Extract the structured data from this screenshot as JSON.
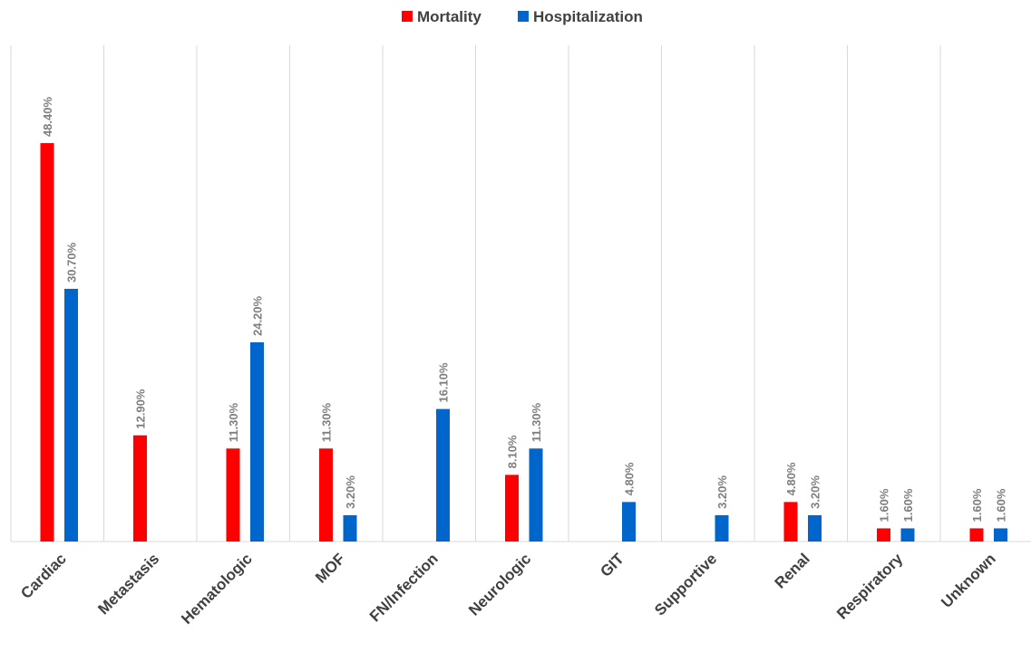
{
  "chart_data": {
    "type": "bar",
    "title": "",
    "xlabel": "",
    "ylabel": "",
    "ylim": [
      0,
      55
    ],
    "grid": "vertical category separators",
    "legend_position": "top-center",
    "categories": [
      "Cardiac",
      "Metastasis",
      "Hematologic",
      "MOF",
      "FN/Infection",
      "Neurologic",
      "GIT",
      "Supportive",
      "Renal",
      "Respiratory",
      "Unknown"
    ],
    "series": [
      {
        "name": "Mortality",
        "color": "#ff0000",
        "values": [
          48.4,
          12.9,
          11.3,
          11.3,
          null,
          8.1,
          null,
          null,
          4.8,
          1.6,
          1.6
        ],
        "labels": [
          "48.40%",
          "12.90%",
          "11.30%",
          "11.30%",
          "",
          "8.10%",
          "",
          "",
          "4.80%",
          "1.60%",
          "1.60%"
        ]
      },
      {
        "name": "Hospitalization",
        "color": "#0066cc",
        "values": [
          30.7,
          null,
          24.2,
          3.2,
          16.1,
          11.3,
          4.8,
          3.2,
          3.2,
          1.6,
          1.6
        ],
        "labels": [
          "30.70%",
          "",
          "24.20%",
          "3.20%",
          "16.10%",
          "11.30%",
          "4.80%",
          "3.20%",
          "3.20%",
          "1.60%",
          "1.60%"
        ]
      }
    ]
  }
}
